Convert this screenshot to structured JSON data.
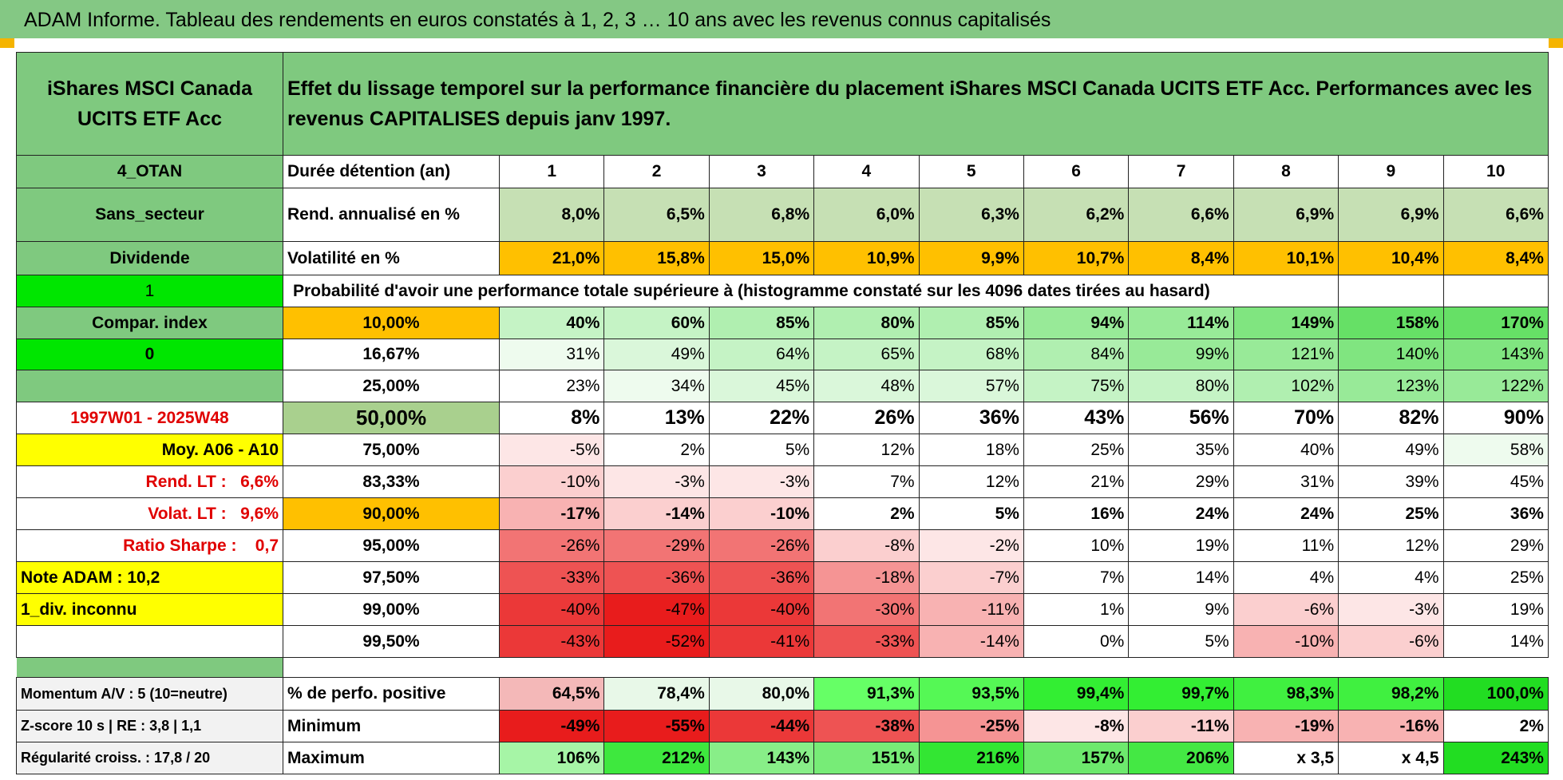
{
  "title": "ADAM Informe. Tableau des rendements en euros constatés à 1, 2, 3 … 10 ans avec les revenus connus capitalisés",
  "table": {
    "fund": "iShares MSCI Canada UCITS ETF Acc",
    "description": "Effet du lissage temporel sur la performance financière du placement iShares MSCI Canada UCITS ETF Acc. Performances avec les revenus CAPITALISES depuis janv 1997.",
    "rows": [
      {
        "side": "4_OTAN",
        "label": "Durée détention (an)",
        "values": [
          "1",
          "2",
          "3",
          "4",
          "5",
          "6",
          "7",
          "8",
          "9",
          "10"
        ]
      },
      {
        "side": "Sans_secteur",
        "label": "Rend. annualisé en %",
        "values": [
          "8,0%",
          "6,5%",
          "6,8%",
          "6,0%",
          "6,3%",
          "6,2%",
          "6,6%",
          "6,9%",
          "6,9%",
          "6,6%"
        ]
      },
      {
        "side": "Dividende",
        "label": "Volatilité en %",
        "values": [
          "21,0%",
          "15,8%",
          "15,0%",
          "10,9%",
          "9,9%",
          "10,7%",
          "8,4%",
          "10,1%",
          "10,4%",
          "8,4%"
        ]
      },
      {
        "side": "1",
        "note": "Probabilité d'avoir une performance totale supérieure à (histogramme constaté sur les 4096 dates tirées au hasard)"
      },
      {
        "side": "Compar. index",
        "label": "10,00%",
        "values": [
          "40%",
          "60%",
          "85%",
          "80%",
          "85%",
          "94%",
          "114%",
          "149%",
          "158%",
          "170%"
        ]
      },
      {
        "side": "0",
        "label": "16,67%",
        "values": [
          "31%",
          "49%",
          "64%",
          "65%",
          "68%",
          "84%",
          "99%",
          "121%",
          "140%",
          "143%"
        ]
      },
      {
        "label": "25,00%",
        "values": [
          "23%",
          "34%",
          "45%",
          "48%",
          "57%",
          "75%",
          "80%",
          "102%",
          "123%",
          "122%"
        ]
      },
      {
        "side": "1997W01 - 2025W48",
        "label": "50,00%",
        "values": [
          "8%",
          "13%",
          "22%",
          "26%",
          "36%",
          "43%",
          "56%",
          "70%",
          "82%",
          "90%"
        ]
      },
      {
        "side": "Moy. A06 - A10",
        "label": "75,00%",
        "values": [
          "-5%",
          "2%",
          "5%",
          "12%",
          "18%",
          "25%",
          "35%",
          "40%",
          "49%",
          "58%"
        ]
      },
      {
        "side": "Rend. LT :   6,6%",
        "label": "83,33%",
        "values": [
          "-10%",
          "-3%",
          "-3%",
          "7%",
          "12%",
          "21%",
          "29%",
          "31%",
          "39%",
          "45%"
        ]
      },
      {
        "side": "Volat. LT :   9,6%",
        "label": "90,00%",
        "values": [
          "-17%",
          "-14%",
          "-10%",
          "2%",
          "5%",
          "16%",
          "24%",
          "24%",
          "25%",
          "36%"
        ]
      },
      {
        "side": "Ratio Sharpe :    0,7",
        "label": "95,00%",
        "values": [
          "-26%",
          "-29%",
          "-26%",
          "-8%",
          "-2%",
          "10%",
          "19%",
          "11%",
          "12%",
          "29%"
        ]
      },
      {
        "side": "Note ADAM : 10,2",
        "label": "97,50%",
        "values": [
          "-33%",
          "-36%",
          "-36%",
          "-18%",
          "-7%",
          "7%",
          "14%",
          "4%",
          "4%",
          "25%"
        ]
      },
      {
        "side": "1_div. inconnu",
        "label": "99,00%",
        "values": [
          "-40%",
          "-47%",
          "-40%",
          "-30%",
          "-11%",
          "1%",
          "9%",
          "-6%",
          "-3%",
          "19%"
        ]
      },
      {
        "label": "99,50%",
        "values": [
          "-43%",
          "-52%",
          "-41%",
          "-33%",
          "-14%",
          "0%",
          "5%",
          "-10%",
          "-6%",
          "14%"
        ]
      },
      {
        "side": "Momentum A/V : 5 (10=neutre)",
        "label": "% de perfo. positive",
        "values": [
          "64,5%",
          "78,4%",
          "80,0%",
          "91,3%",
          "93,5%",
          "99,4%",
          "99,7%",
          "98,3%",
          "98,2%",
          "100,0%"
        ]
      },
      {
        "side": "Z-score 10 s | RE : 3,8 | 1,1",
        "label": "Minimum",
        "values": [
          "-49%",
          "-55%",
          "-44%",
          "-38%",
          "-25%",
          "-8%",
          "-11%",
          "-19%",
          "-16%",
          "2%"
        ]
      },
      {
        "side": "Régularité croiss. : 17,8 / 20",
        "label": "Maximum",
        "values": [
          "106%",
          "212%",
          "143%",
          "151%",
          "216%",
          "157%",
          "206%",
          "x 3,5",
          "x 4,5",
          "243%"
        ]
      }
    ]
  }
}
